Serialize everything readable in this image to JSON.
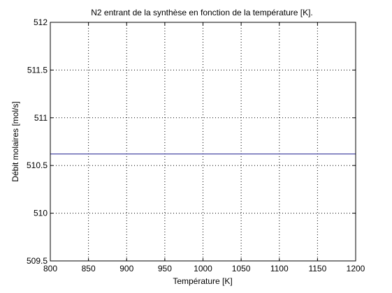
{
  "chart_data": {
    "type": "line",
    "title": "N2 entrant de la synthèse en fonction de la température [K].",
    "xlabel": "Température [K]",
    "ylabel": "Débit molaires [mol/s]",
    "xlim": [
      800,
      1200
    ],
    "ylim": [
      509.5,
      512
    ],
    "xticks": [
      800,
      850,
      900,
      950,
      1000,
      1050,
      1100,
      1150,
      1200
    ],
    "yticks": [
      509.5,
      510,
      510.5,
      511,
      511.5,
      512
    ],
    "xtick_labels": [
      "800",
      "850",
      "900",
      "950",
      "1000",
      "1050",
      "1100",
      "1150",
      "1200"
    ],
    "ytick_labels": [
      "509.5",
      "510",
      "510.5",
      "511",
      "511.5",
      "512"
    ],
    "grid": true,
    "series": [
      {
        "color": "#1f1f8f",
        "x": [
          800,
          1200
        ],
        "y": [
          510.62,
          510.62
        ]
      }
    ]
  }
}
